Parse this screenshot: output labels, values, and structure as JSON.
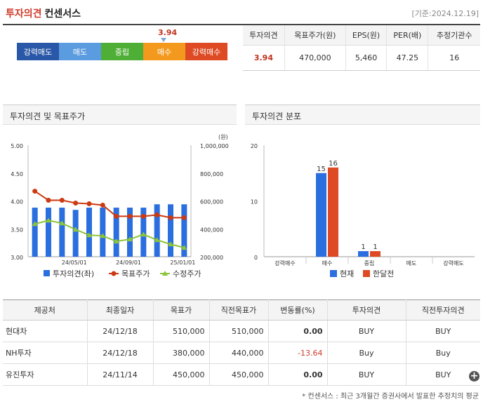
{
  "header": {
    "title": "투자의견",
    "subtitle": "컨센서스",
    "date": "[기준:2024.12.19]"
  },
  "gauge": {
    "value": "3.94",
    "segments": [
      {
        "label": "강력매도",
        "color": "#2a58a8"
      },
      {
        "label": "매도",
        "color": "#5b9bdf"
      },
      {
        "label": "중립",
        "color": "#4fae36"
      },
      {
        "label": "매수",
        "color": "#f39a1e"
      },
      {
        "label": "강력매수",
        "color": "#dd4a23"
      }
    ]
  },
  "summary": {
    "headers": [
      "투자의견",
      "목표주가(원)",
      "EPS(원)",
      "PER(배)",
      "추정기관수"
    ],
    "values": [
      "3.94",
      "470,000",
      "5,460",
      "47.25",
      "16"
    ]
  },
  "panel1": {
    "title": "투자의견 및 목표주가"
  },
  "panel2": {
    "title": "투자의견 분포"
  },
  "chart_data": [
    {
      "type": "bar+line",
      "unit_label": "(원)",
      "left_ticks": [
        "5.00",
        "4.50",
        "4.00",
        "3.50",
        "3.00"
      ],
      "right_ticks": [
        "1,000,000",
        "800,000",
        "600,000",
        "400,000",
        "200,000"
      ],
      "x_ticks": [
        "24/05/01",
        "24/09/01",
        "25/01/01"
      ],
      "ylim_left": [
        3.0,
        5.0
      ],
      "ylim_right": [
        200000,
        1000000
      ],
      "opinion": [
        3.88,
        3.88,
        3.88,
        3.84,
        3.88,
        3.88,
        3.88,
        3.88,
        3.88,
        3.94,
        3.94,
        3.94
      ],
      "target_price": [
        670000,
        605000,
        605000,
        585000,
        580000,
        570000,
        490000,
        490000,
        490000,
        500000,
        480000,
        480000
      ],
      "revised_price": [
        435000,
        460000,
        440000,
        395000,
        355000,
        350000,
        310000,
        325000,
        360000,
        320000,
        290000,
        265000
      ],
      "legend": [
        "투자의견(좌)",
        "목표주가",
        "수정주가"
      ],
      "colors": {
        "bar": "#2a6ee0",
        "target": "#cc3a12",
        "revised": "#8cc43a"
      }
    },
    {
      "type": "bar",
      "categories": [
        "강력매수",
        "매수",
        "중립",
        "매도",
        "강력매도"
      ],
      "y_ticks": [
        "20",
        "10",
        "0"
      ],
      "ylim": [
        0,
        20
      ],
      "series": [
        {
          "name": "현재",
          "values": [
            0,
            15,
            1,
            0,
            0
          ],
          "color": "#2a6ee0"
        },
        {
          "name": "한달전",
          "values": [
            0,
            16,
            1,
            0,
            0
          ],
          "color": "#dd4a23"
        }
      ]
    }
  ],
  "details": {
    "headers": [
      "제공처",
      "최종일자",
      "목표가",
      "직전목표가",
      "변동률(%)",
      "투자의견",
      "직전투자의견"
    ],
    "rows": [
      [
        "현대차",
        "24/12/18",
        "510,000",
        "510,000",
        "0.00",
        "BUY",
        "BUY"
      ],
      [
        "NH투자",
        "24/12/18",
        "380,000",
        "440,000",
        "-13.64",
        "Buy",
        "Buy"
      ],
      [
        "유진투자",
        "24/11/14",
        "450,000",
        "450,000",
        "0.00",
        "BUY",
        "BUY"
      ]
    ]
  },
  "more_button": "+",
  "footnote": "* 컨센서스 : 최근 3개월간 증권사에서 발표한 추정치의 평균"
}
